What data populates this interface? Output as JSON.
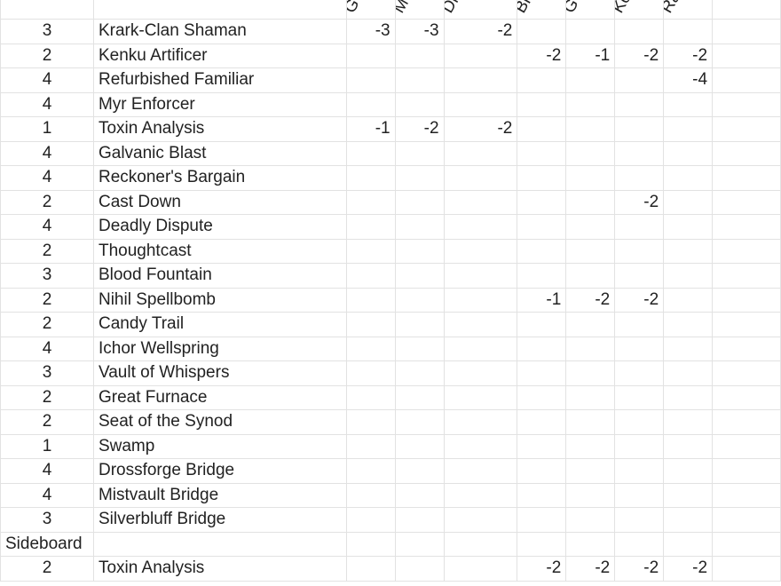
{
  "columns": [
    "G",
    "M",
    "Di",
    "Br",
    "G",
    "Ko",
    "Ra"
  ],
  "rows": [
    {
      "qty": "3",
      "card": "Krark-Clan Shaman",
      "vals": [
        "-3",
        "-3",
        "-2",
        "",
        "",
        "",
        ""
      ]
    },
    {
      "qty": "2",
      "card": "Kenku Artificer",
      "vals": [
        "",
        "",
        "",
        "-2",
        "-1",
        "-2",
        "-2"
      ]
    },
    {
      "qty": "4",
      "card": "Refurbished Familiar",
      "vals": [
        "",
        "",
        "",
        "",
        "",
        "",
        "-4"
      ]
    },
    {
      "qty": "4",
      "card": "Myr Enforcer",
      "vals": [
        "",
        "",
        "",
        "",
        "",
        "",
        ""
      ]
    },
    {
      "qty": "1",
      "card": "Toxin Analysis",
      "vals": [
        "-1",
        "-2",
        "-2",
        "",
        "",
        "",
        ""
      ]
    },
    {
      "qty": "4",
      "card": "Galvanic Blast",
      "vals": [
        "",
        "",
        "",
        "",
        "",
        "",
        ""
      ]
    },
    {
      "qty": "4",
      "card": "Reckoner's Bargain",
      "vals": [
        "",
        "",
        "",
        "",
        "",
        "",
        ""
      ]
    },
    {
      "qty": "2",
      "card": "Cast Down",
      "vals": [
        "",
        "",
        "",
        "",
        "",
        "-2",
        ""
      ]
    },
    {
      "qty": "4",
      "card": "Deadly Dispute",
      "vals": [
        "",
        "",
        "",
        "",
        "",
        "",
        ""
      ]
    },
    {
      "qty": "2",
      "card": "Thoughtcast",
      "vals": [
        "",
        "",
        "",
        "",
        "",
        "",
        ""
      ]
    },
    {
      "qty": "3",
      "card": "Blood Fountain",
      "vals": [
        "",
        "",
        "",
        "",
        "",
        "",
        ""
      ]
    },
    {
      "qty": "2",
      "card": "Nihil Spellbomb",
      "vals": [
        "",
        "",
        "",
        "-1",
        "-2",
        "-2",
        ""
      ]
    },
    {
      "qty": "2",
      "card": "Candy Trail",
      "vals": [
        "",
        "",
        "",
        "",
        "",
        "",
        ""
      ]
    },
    {
      "qty": "4",
      "card": "Ichor Wellspring",
      "vals": [
        "",
        "",
        "",
        "",
        "",
        "",
        ""
      ]
    },
    {
      "qty": "3",
      "card": "Vault of Whispers",
      "vals": [
        "",
        "",
        "",
        "",
        "",
        "",
        ""
      ]
    },
    {
      "qty": "2",
      "card": "Great Furnace",
      "vals": [
        "",
        "",
        "",
        "",
        "",
        "",
        ""
      ]
    },
    {
      "qty": "2",
      "card": "Seat of the Synod",
      "vals": [
        "",
        "",
        "",
        "",
        "",
        "",
        ""
      ]
    },
    {
      "qty": "1",
      "card": "Swamp",
      "vals": [
        "",
        "",
        "",
        "",
        "",
        "",
        ""
      ]
    },
    {
      "qty": "4",
      "card": "Drossforge Bridge",
      "vals": [
        "",
        "",
        "",
        "",
        "",
        "",
        ""
      ]
    },
    {
      "qty": "4",
      "card": "Mistvault Bridge",
      "vals": [
        "",
        "",
        "",
        "",
        "",
        "",
        ""
      ]
    },
    {
      "qty": "3",
      "card": "Silverbluff Bridge",
      "vals": [
        "",
        "",
        "",
        "",
        "",
        "",
        ""
      ]
    },
    {
      "qty": "Sideboard",
      "card": "",
      "vals": [
        "",
        "",
        "",
        "",
        "",
        "",
        ""
      ],
      "section": true
    },
    {
      "qty": "2",
      "card": "Toxin Analysis",
      "vals": [
        "",
        "",
        "",
        "-2",
        "-2",
        "-2",
        "-2"
      ]
    }
  ]
}
